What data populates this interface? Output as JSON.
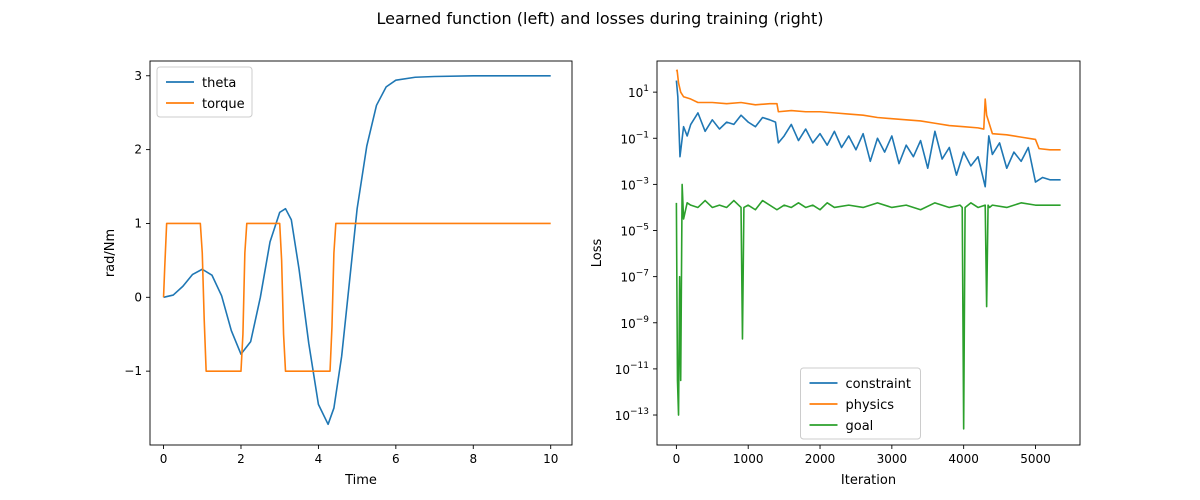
{
  "figure": {
    "title": "Learned function (left) and losses during training (right)"
  },
  "chart_data": [
    {
      "type": "line",
      "xlabel": "Time",
      "ylabel": "rad/Nm",
      "xlim": [
        -0.35,
        10.55
      ],
      "ylim": [
        -2.0,
        3.2
      ],
      "xticks": [
        0,
        2,
        4,
        6,
        8,
        10
      ],
      "xtick_labels": [
        "0",
        "2",
        "4",
        "6",
        "8",
        "10"
      ],
      "yticks": [
        -1,
        0,
        1,
        2,
        3
      ],
      "ytick_labels": [
        "−1",
        "0",
        "1",
        "2",
        "3"
      ],
      "legend": "top-left",
      "grid": false,
      "series": [
        {
          "name": "theta",
          "color": "#1f77b4",
          "x": [
            0,
            0.25,
            0.5,
            0.75,
            1.0,
            1.25,
            1.5,
            1.75,
            2.0,
            2.25,
            2.5,
            2.75,
            3.0,
            3.15,
            3.3,
            3.5,
            3.75,
            4.0,
            4.25,
            4.4,
            4.6,
            4.8,
            5.0,
            5.25,
            5.5,
            5.75,
            6.0,
            6.5,
            7.0,
            8.0,
            9.0,
            10.0
          ],
          "values": [
            0,
            0.03,
            0.15,
            0.31,
            0.38,
            0.3,
            0.02,
            -0.45,
            -0.77,
            -0.6,
            0.0,
            0.75,
            1.15,
            1.2,
            1.05,
            0.38,
            -0.62,
            -1.45,
            -1.72,
            -1.5,
            -0.8,
            0.2,
            1.2,
            2.05,
            2.6,
            2.85,
            2.94,
            2.98,
            2.99,
            3.0,
            3.0,
            3.0
          ]
        },
        {
          "name": "torque",
          "color": "#ff7f0e",
          "x": [
            0,
            0.03,
            0.08,
            0.95,
            1.0,
            1.05,
            1.1,
            2.0,
            2.05,
            2.1,
            2.15,
            3.0,
            3.05,
            3.1,
            3.15,
            4.3,
            4.35,
            4.4,
            4.45,
            10.0
          ],
          "values": [
            0,
            0.4,
            1.0,
            1.0,
            0.6,
            -0.3,
            -1.0,
            -1.0,
            -0.5,
            0.6,
            1.0,
            1.0,
            0.5,
            -0.5,
            -1.0,
            -1.0,
            -0.4,
            0.6,
            1.0,
            1.0
          ]
        }
      ]
    },
    {
      "type": "line",
      "xlabel": "Iteration",
      "ylabel": "Loss",
      "yscale": "log",
      "xlim": [
        -270,
        5620
      ],
      "ylim_log10": [
        -14.3,
        2.35
      ],
      "xticks": [
        0,
        1000,
        2000,
        3000,
        4000,
        5000
      ],
      "xtick_labels": [
        "0",
        "1000",
        "2000",
        "3000",
        "4000",
        "5000"
      ],
      "yticks_log10": [
        1,
        -1,
        -3,
        -5,
        -7,
        -9,
        -11,
        -13
      ],
      "ytick_labels": [
        {
          "base": "10",
          "exp": "1"
        },
        {
          "base": "10",
          "exp": "−1"
        },
        {
          "base": "10",
          "exp": "−3"
        },
        {
          "base": "10",
          "exp": "−5"
        },
        {
          "base": "10",
          "exp": "−7"
        },
        {
          "base": "10",
          "exp": "−9"
        },
        {
          "base": "10",
          "exp": "−11"
        },
        {
          "base": "10",
          "exp": "−13"
        }
      ],
      "legend": "lower-center",
      "grid": false,
      "series": [
        {
          "name": "constraint",
          "color": "#1f77b4",
          "x": [
            0,
            20,
            50,
            100,
            150,
            200,
            300,
            400,
            500,
            600,
            700,
            800,
            900,
            1000,
            1100,
            1200,
            1300,
            1380,
            1420,
            1500,
            1600,
            1700,
            1800,
            1900,
            2000,
            2100,
            2200,
            2300,
            2400,
            2500,
            2600,
            2700,
            2800,
            2900,
            3000,
            3100,
            3200,
            3300,
            3400,
            3500,
            3600,
            3700,
            3800,
            3900,
            4000,
            4100,
            4200,
            4300,
            4350,
            4400,
            4500,
            4600,
            4700,
            4800,
            4900,
            5000,
            5100,
            5200,
            5350
          ],
          "values_log10": [
            1.5,
            0.8,
            -1.8,
            -0.5,
            -0.9,
            -0.4,
            0.1,
            -0.7,
            -0.2,
            -0.6,
            -0.3,
            -0.4,
            0.0,
            -0.3,
            -0.5,
            -0.1,
            -0.2,
            -0.3,
            -1.2,
            -0.9,
            -0.4,
            -1.1,
            -0.6,
            -1.2,
            -0.8,
            -1.3,
            -0.7,
            -1.4,
            -0.9,
            -1.5,
            -0.8,
            -2.0,
            -1.0,
            -1.6,
            -0.9,
            -2.1,
            -1.3,
            -1.8,
            -1.1,
            -2.3,
            -0.7,
            -1.9,
            -1.4,
            -2.6,
            -1.6,
            -2.2,
            -1.8,
            -3.1,
            -0.9,
            -1.7,
            -1.2,
            -2.3,
            -1.6,
            -2.0,
            -1.4,
            -2.9,
            -2.7,
            -2.8,
            -2.8
          ]
        },
        {
          "name": "physics",
          "color": "#ff7f0e",
          "x": [
            0,
            10,
            30,
            60,
            100,
            200,
            300,
            500,
            700,
            900,
            1100,
            1300,
            1400,
            1420,
            1600,
            1800,
            2000,
            2200,
            2400,
            2600,
            2800,
            3000,
            3200,
            3400,
            3600,
            3800,
            4000,
            4200,
            4280,
            4300,
            4320,
            4400,
            4600,
            4800,
            5000,
            5050,
            5200,
            5350
          ],
          "values_log10": [
            1.9,
            1.95,
            1.4,
            1.0,
            0.8,
            0.7,
            0.55,
            0.55,
            0.5,
            0.55,
            0.45,
            0.5,
            0.5,
            0.15,
            0.2,
            0.15,
            0.15,
            0.1,
            0.05,
            0.0,
            -0.1,
            -0.15,
            -0.2,
            -0.25,
            -0.35,
            -0.45,
            -0.5,
            -0.55,
            -0.6,
            0.7,
            0.0,
            -0.8,
            -0.85,
            -0.95,
            -1.05,
            -1.45,
            -1.5,
            -1.5
          ]
        },
        {
          "name": "goal",
          "color": "#2ca02c",
          "x": [
            0,
            15,
            30,
            45,
            60,
            80,
            100,
            150,
            200,
            300,
            400,
            500,
            600,
            700,
            800,
            900,
            920,
            940,
            1000,
            1100,
            1200,
            1400,
            1500,
            1600,
            1700,
            1800,
            1900,
            2000,
            2100,
            2200,
            2400,
            2600,
            2800,
            3000,
            3200,
            3400,
            3600,
            3800,
            3950,
            3980,
            4000,
            4020,
            4100,
            4200,
            4300,
            4320,
            4340,
            4360,
            4400,
            4600,
            4800,
            5000,
            5200,
            5350
          ],
          "values_log10": [
            -3.8,
            -11.5,
            -13.0,
            -7.0,
            -11.5,
            -3.0,
            -4.5,
            -3.8,
            -3.9,
            -4.0,
            -3.7,
            -4.0,
            -3.9,
            -4.0,
            -3.7,
            -4.0,
            -9.7,
            -4.0,
            -3.9,
            -4.1,
            -3.7,
            -4.1,
            -3.9,
            -4.0,
            -3.8,
            -4.0,
            -3.9,
            -4.1,
            -3.8,
            -4.0,
            -3.9,
            -4.0,
            -3.8,
            -4.0,
            -3.9,
            -4.1,
            -3.8,
            -4.0,
            -3.9,
            -4.0,
            -13.6,
            -4.0,
            -3.8,
            -4.0,
            -3.9,
            -8.3,
            -3.9,
            -4.0,
            -3.9,
            -4.0,
            -3.8,
            -3.9,
            -3.9,
            -3.9
          ]
        }
      ]
    }
  ]
}
